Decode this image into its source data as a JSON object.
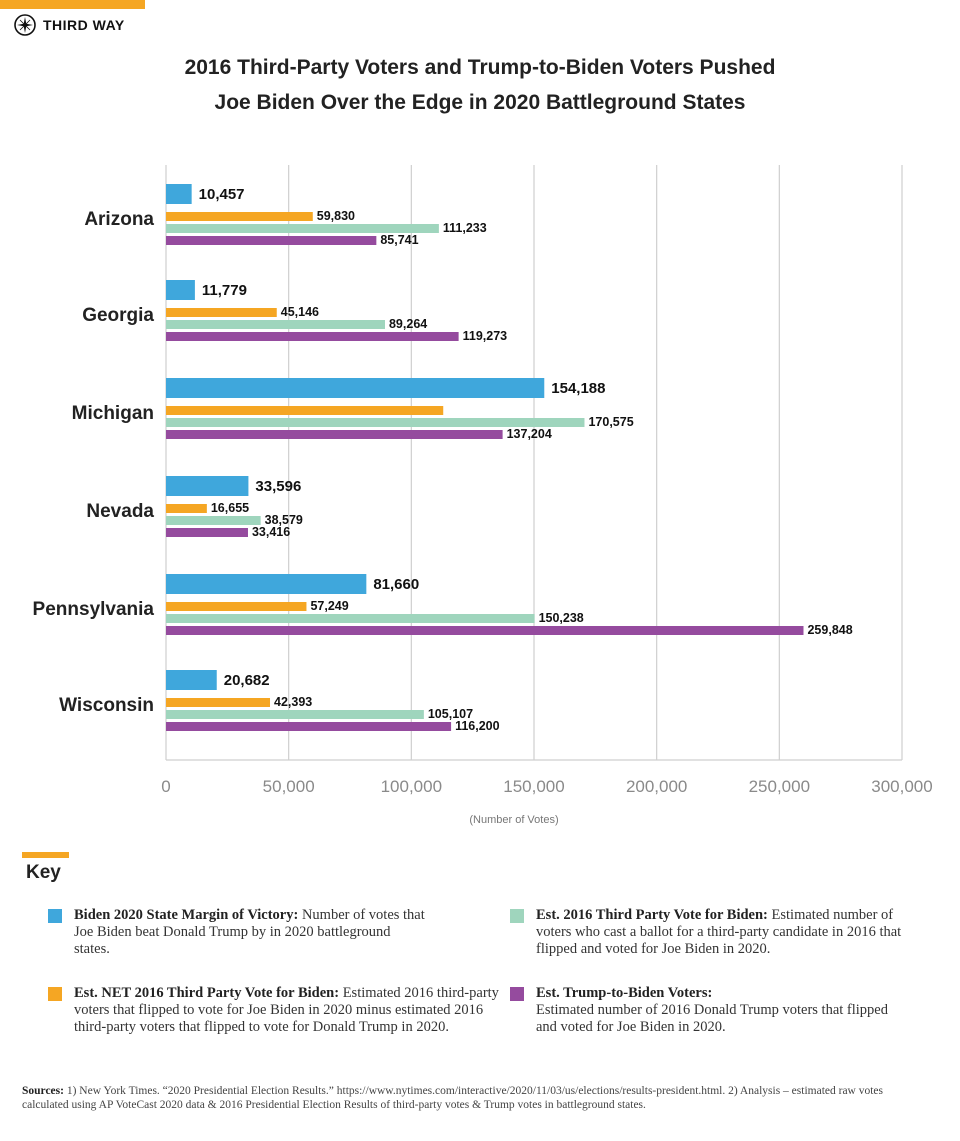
{
  "brand": {
    "name": "THIRD WAY",
    "accent_color": "#f5a623"
  },
  "title_line1": "2016 Third-Party Voters and Trump-to-Biden Voters Pushed",
  "title_line2": "Joe Biden Over the Edge in 2020 Battleground States",
  "chart_data": {
    "type": "bar",
    "orientation": "horizontal",
    "categories": [
      "Arizona",
      "Georgia",
      "Michigan",
      "Nevada",
      "Pennsylvania",
      "Wisconsin"
    ],
    "series": [
      {
        "name": "Biden 2020 State Margin of Victory",
        "color": "#3fa7dc",
        "values": [
          10457,
          11779,
          154188,
          33596,
          81660,
          20682
        ],
        "labels": [
          "10,457",
          "11,779",
          "154,188",
          "33,596",
          "81,660",
          "20,682"
        ]
      },
      {
        "name": "Est. NET 2016 Third Party Vote for Biden",
        "color": "#f5a623",
        "values": [
          59830,
          45146,
          113000,
          16655,
          57249,
          42393
        ],
        "labels": [
          "59,830",
          "45,146",
          "",
          "16,655",
          "57,249",
          "42,393"
        ]
      },
      {
        "name": "Est. 2016 Third Party Vote for Biden",
        "color": "#9fd5bd",
        "values": [
          111233,
          89264,
          170575,
          38579,
          150238,
          105107
        ],
        "labels": [
          "111,233",
          "89,264",
          "170,575",
          "38,579",
          "150,238",
          "105,107"
        ]
      },
      {
        "name": "Est. Trump-to-Biden Voters",
        "color": "#954b9e",
        "values": [
          85741,
          119273,
          137204,
          33416,
          259848,
          116200
        ],
        "labels": [
          "85,741",
          "119,273",
          "137,204",
          "33,416",
          "259,848",
          "116,200"
        ]
      }
    ],
    "xlim": [
      0,
      300000
    ],
    "xticks": [
      0,
      50000,
      100000,
      150000,
      200000,
      250000,
      300000
    ],
    "xtick_labels": [
      "0",
      "50,000",
      "100,000",
      "150,000",
      "200,000",
      "250,000",
      "300,000"
    ],
    "xlabel": "(Number of Votes)",
    "grid": true
  },
  "key": {
    "title": "Key",
    "items": [
      {
        "label": "Biden 2020 State Margin of Victory:",
        "description": "Number of votes that Joe Biden beat Donald Trump by in 2020 battleground states.",
        "color": "#3fa7dc"
      },
      {
        "label": "Est. NET 2016 Third Party Vote for Biden:",
        "description": "Estimated 2016 third-party voters that flipped to vote for Joe Biden in 2020 minus estimated 2016 third-party voters that flipped to vote for Donald Trump in 2020.",
        "color": "#f5a623"
      },
      {
        "label": "Est. 2016 Third Party Vote for Biden:",
        "description": "Estimated number of voters who cast a ballot for a third-party candidate in 2016 that flipped and voted for Joe Biden in 2020.",
        "color": "#9fd5bd"
      },
      {
        "label": "Est. Trump-to-Biden Voters:",
        "description": "Estimated number of 2016 Donald Trump voters that flipped and voted for Joe Biden in 2020.",
        "color": "#954b9e"
      }
    ]
  },
  "sources": {
    "label": "Sources:",
    "text": "1) New York Times. “2020 Presidential Election Results.” https://www.nytimes.com/interactive/2020/11/03/us/elections/results-president.html. 2) Analysis – estimated raw votes calculated using AP VoteCast 2020 data & 2016 Presidential Election Results of third-party votes & Trump votes in battleground states."
  }
}
